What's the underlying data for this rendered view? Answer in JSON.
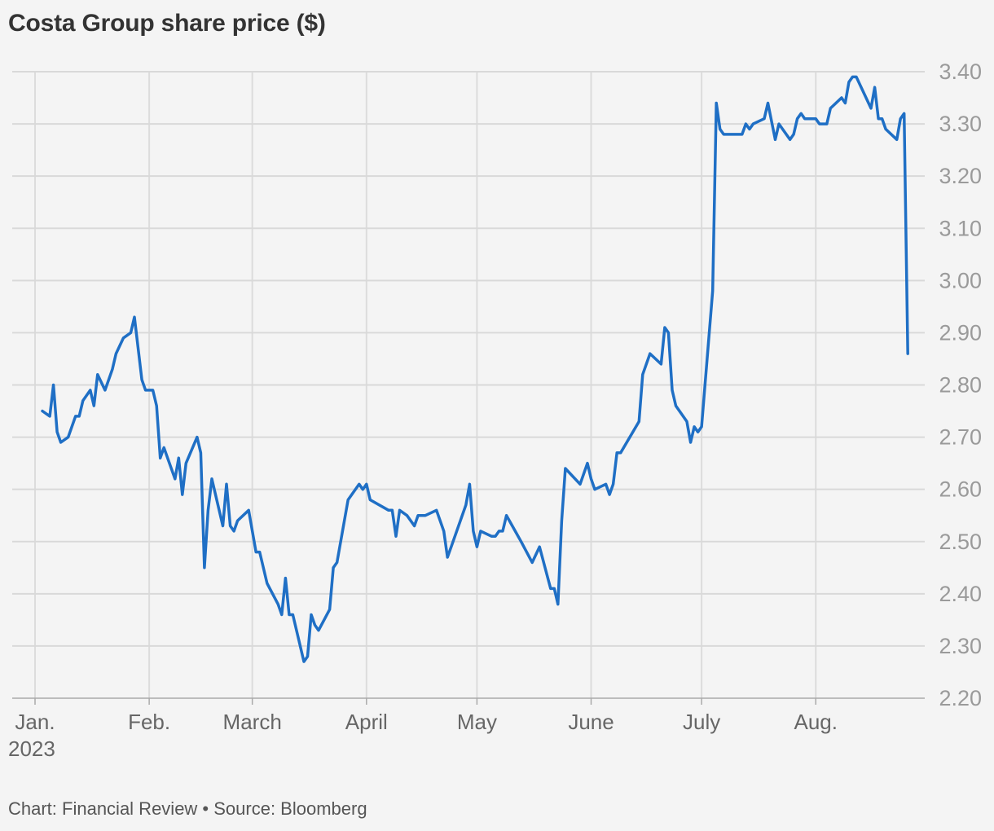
{
  "title": "Costa Group share price ($)",
  "footer": "Chart: Financial Review • Source: Bloomberg",
  "colors": {
    "line": "#1f6fc5",
    "background": "#f4f4f4",
    "grid": "#d9d9d9"
  },
  "chart_data": {
    "type": "line",
    "title": "Costa Group share price ($)",
    "xlabel": "",
    "ylabel": "",
    "ylim": [
      2.2,
      3.4
    ],
    "yticks": [
      "3.40",
      "3.30",
      "3.20",
      "3.10",
      "3.00",
      "2.90",
      "2.80",
      "2.70",
      "2.60",
      "2.50",
      "2.40",
      "2.30",
      "2.20"
    ],
    "xticks": [
      {
        "label": "Jan.",
        "sublabel": "2023",
        "date": "2023-01-01"
      },
      {
        "label": "Feb.",
        "date": "2023-02-01"
      },
      {
        "label": "March",
        "date": "2023-03-01"
      },
      {
        "label": "April",
        "date": "2023-04-01"
      },
      {
        "label": "May",
        "date": "2023-05-01"
      },
      {
        "label": "June",
        "date": "2023-06-01"
      },
      {
        "label": "July",
        "date": "2023-07-01"
      },
      {
        "label": "Aug.",
        "date": "2023-08-01"
      }
    ],
    "grid": true,
    "legend": "none",
    "series": [
      {
        "points": [
          [
            "2023-01-03",
            2.75
          ],
          [
            "2023-01-05",
            2.74
          ],
          [
            "2023-01-06",
            2.8
          ],
          [
            "2023-01-07",
            2.71
          ],
          [
            "2023-01-08",
            2.69
          ],
          [
            "2023-01-10",
            2.7
          ],
          [
            "2023-01-12",
            2.74
          ],
          [
            "2023-01-13",
            2.74
          ],
          [
            "2023-01-14",
            2.77
          ],
          [
            "2023-01-16",
            2.79
          ],
          [
            "2023-01-17",
            2.76
          ],
          [
            "2023-01-18",
            2.82
          ],
          [
            "2023-01-20",
            2.79
          ],
          [
            "2023-01-22",
            2.83
          ],
          [
            "2023-01-23",
            2.86
          ],
          [
            "2023-01-25",
            2.89
          ],
          [
            "2023-01-27",
            2.9
          ],
          [
            "2023-01-28",
            2.93
          ],
          [
            "2023-01-30",
            2.81
          ],
          [
            "2023-01-31",
            2.79
          ],
          [
            "2023-02-02",
            2.79
          ],
          [
            "2023-02-03",
            2.76
          ],
          [
            "2023-02-04",
            2.66
          ],
          [
            "2023-02-05",
            2.68
          ],
          [
            "2023-02-06",
            2.66
          ],
          [
            "2023-02-08",
            2.62
          ],
          [
            "2023-02-09",
            2.66
          ],
          [
            "2023-02-10",
            2.59
          ],
          [
            "2023-02-11",
            2.65
          ],
          [
            "2023-02-14",
            2.7
          ],
          [
            "2023-02-15",
            2.67
          ],
          [
            "2023-02-16",
            2.45
          ],
          [
            "2023-02-17",
            2.56
          ],
          [
            "2023-02-18",
            2.62
          ],
          [
            "2023-02-21",
            2.53
          ],
          [
            "2023-02-22",
            2.61
          ],
          [
            "2023-02-23",
            2.53
          ],
          [
            "2023-02-24",
            2.52
          ],
          [
            "2023-02-25",
            2.54
          ],
          [
            "2023-02-28",
            2.56
          ],
          [
            "2023-03-02",
            2.48
          ],
          [
            "2023-03-03",
            2.48
          ],
          [
            "2023-03-05",
            2.42
          ],
          [
            "2023-03-08",
            2.38
          ],
          [
            "2023-03-09",
            2.36
          ],
          [
            "2023-03-10",
            2.43
          ],
          [
            "2023-03-11",
            2.36
          ],
          [
            "2023-03-12",
            2.36
          ],
          [
            "2023-03-15",
            2.27
          ],
          [
            "2023-03-16",
            2.28
          ],
          [
            "2023-03-17",
            2.36
          ],
          [
            "2023-03-18",
            2.34
          ],
          [
            "2023-03-19",
            2.33
          ],
          [
            "2023-03-22",
            2.37
          ],
          [
            "2023-03-23",
            2.45
          ],
          [
            "2023-03-24",
            2.46
          ],
          [
            "2023-03-27",
            2.58
          ],
          [
            "2023-03-30",
            2.61
          ],
          [
            "2023-03-31",
            2.6
          ],
          [
            "2023-04-01",
            2.61
          ],
          [
            "2023-04-02",
            2.58
          ],
          [
            "2023-04-07",
            2.56
          ],
          [
            "2023-04-08",
            2.56
          ],
          [
            "2023-04-09",
            2.51
          ],
          [
            "2023-04-10",
            2.56
          ],
          [
            "2023-04-12",
            2.55
          ],
          [
            "2023-04-14",
            2.53
          ],
          [
            "2023-04-15",
            2.55
          ],
          [
            "2023-04-17",
            2.55
          ],
          [
            "2023-04-20",
            2.56
          ],
          [
            "2023-04-22",
            2.52
          ],
          [
            "2023-04-23",
            2.47
          ],
          [
            "2023-04-24",
            2.49
          ],
          [
            "2023-04-28",
            2.57
          ],
          [
            "2023-04-29",
            2.61
          ],
          [
            "2023-04-30",
            2.52
          ],
          [
            "2023-05-01",
            2.49
          ],
          [
            "2023-05-02",
            2.52
          ],
          [
            "2023-05-05",
            2.51
          ],
          [
            "2023-05-06",
            2.51
          ],
          [
            "2023-05-07",
            2.52
          ],
          [
            "2023-05-08",
            2.52
          ],
          [
            "2023-05-09",
            2.55
          ],
          [
            "2023-05-13",
            2.5
          ],
          [
            "2023-05-16",
            2.46
          ],
          [
            "2023-05-18",
            2.49
          ],
          [
            "2023-05-21",
            2.41
          ],
          [
            "2023-05-22",
            2.41
          ],
          [
            "2023-05-23",
            2.38
          ],
          [
            "2023-05-24",
            2.54
          ],
          [
            "2023-05-25",
            2.64
          ],
          [
            "2023-05-29",
            2.61
          ],
          [
            "2023-05-31",
            2.65
          ],
          [
            "2023-06-01",
            2.62
          ],
          [
            "2023-06-02",
            2.6
          ],
          [
            "2023-06-05",
            2.61
          ],
          [
            "2023-06-06",
            2.59
          ],
          [
            "2023-06-07",
            2.61
          ],
          [
            "2023-06-08",
            2.67
          ],
          [
            "2023-06-09",
            2.67
          ],
          [
            "2023-06-14",
            2.73
          ],
          [
            "2023-06-15",
            2.82
          ],
          [
            "2023-06-17",
            2.86
          ],
          [
            "2023-06-20",
            2.84
          ],
          [
            "2023-06-21",
            2.91
          ],
          [
            "2023-06-22",
            2.9
          ],
          [
            "2023-06-23",
            2.79
          ],
          [
            "2023-06-24",
            2.76
          ],
          [
            "2023-06-27",
            2.73
          ],
          [
            "2023-06-28",
            2.69
          ],
          [
            "2023-06-29",
            2.72
          ],
          [
            "2023-06-30",
            2.71
          ],
          [
            "2023-07-01",
            2.72
          ],
          [
            "2023-07-04",
            2.98
          ],
          [
            "2023-07-05",
            3.34
          ],
          [
            "2023-07-06",
            3.29
          ],
          [
            "2023-07-07",
            3.28
          ],
          [
            "2023-07-12",
            3.28
          ],
          [
            "2023-07-13",
            3.3
          ],
          [
            "2023-07-14",
            3.29
          ],
          [
            "2023-07-15",
            3.3
          ],
          [
            "2023-07-18",
            3.31
          ],
          [
            "2023-07-19",
            3.34
          ],
          [
            "2023-07-21",
            3.27
          ],
          [
            "2023-07-22",
            3.3
          ],
          [
            "2023-07-25",
            3.27
          ],
          [
            "2023-07-26",
            3.28
          ],
          [
            "2023-07-27",
            3.31
          ],
          [
            "2023-07-28",
            3.32
          ],
          [
            "2023-07-29",
            3.31
          ],
          [
            "2023-08-01",
            3.31
          ],
          [
            "2023-08-02",
            3.3
          ],
          [
            "2023-08-04",
            3.3
          ],
          [
            "2023-08-05",
            3.33
          ],
          [
            "2023-08-08",
            3.35
          ],
          [
            "2023-08-09",
            3.34
          ],
          [
            "2023-08-10",
            3.38
          ],
          [
            "2023-08-11",
            3.39
          ],
          [
            "2023-08-12",
            3.39
          ],
          [
            "2023-08-16",
            3.33
          ],
          [
            "2023-08-17",
            3.37
          ],
          [
            "2023-08-18",
            3.31
          ],
          [
            "2023-08-19",
            3.31
          ],
          [
            "2023-08-20",
            3.29
          ],
          [
            "2023-08-23",
            3.27
          ],
          [
            "2023-08-24",
            3.31
          ],
          [
            "2023-08-25",
            3.32
          ],
          [
            "2023-08-26",
            2.86
          ]
        ]
      }
    ]
  }
}
